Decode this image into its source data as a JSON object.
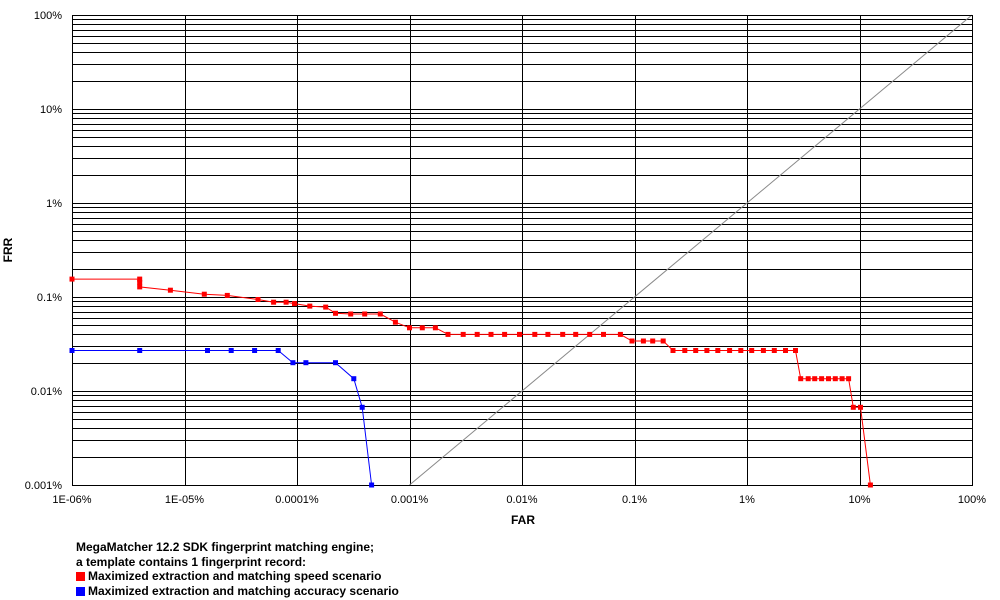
{
  "chart_data": {
    "type": "line",
    "xlabel": "FAR",
    "ylabel": "FRR",
    "x_scale": "log",
    "y_scale": "log",
    "xlim": [
      "1E-06%",
      "100%"
    ],
    "ylim": [
      "0.001%",
      "100%"
    ],
    "x_ticks": [
      "1E-06%",
      "1E-05%",
      "0.0001%",
      "0.001%",
      "0.01%",
      "0.1%",
      "1%",
      "10%",
      "100%"
    ],
    "y_ticks": [
      "0.001%",
      "0.01%",
      "0.1%",
      "1%",
      "10%",
      "100%"
    ],
    "x_tick_values": [
      1e-06,
      1e-05,
      0.0001,
      0.001,
      0.01,
      0.1,
      1,
      10,
      100
    ],
    "y_tick_values": [
      0.001,
      0.01,
      0.1,
      1,
      10,
      100
    ],
    "grid": true,
    "diagonal_eer_line": true,
    "caption": {
      "line1": "MegaMatcher 12.2 SDK fingerprint matching engine;",
      "line2": "a template contains 1 fingerprint record:"
    },
    "series": [
      {
        "name": "Maximized extraction and matching speed scenario",
        "color": "#ff0000",
        "points": [
          [
            1e-06,
            0.155
          ],
          [
            4e-06,
            0.155
          ],
          [
            4e-06,
            0.143
          ],
          [
            4e-06,
            0.128
          ],
          [
            7.5e-06,
            0.118
          ],
          [
            1.5e-05,
            0.107
          ],
          [
            2.4e-05,
            0.104
          ],
          [
            4.5e-05,
            0.094
          ],
          [
            6.2e-05,
            0.088
          ],
          [
            8e-05,
            0.088
          ],
          [
            9.5e-05,
            0.085
          ],
          [
            0.00013,
            0.08
          ],
          [
            0.00018,
            0.078
          ],
          [
            0.00022,
            0.067
          ],
          [
            0.0003,
            0.066
          ],
          [
            0.0004,
            0.066
          ],
          [
            0.00055,
            0.066
          ],
          [
            0.00075,
            0.054
          ],
          [
            0.001,
            0.047
          ],
          [
            0.0013,
            0.047
          ],
          [
            0.0017,
            0.047
          ],
          [
            0.0022,
            0.04
          ],
          [
            0.003,
            0.04
          ],
          [
            0.004,
            0.04
          ],
          [
            0.0053,
            0.04
          ],
          [
            0.007,
            0.04
          ],
          [
            0.0095,
            0.04
          ],
          [
            0.013,
            0.04
          ],
          [
            0.017,
            0.04
          ],
          [
            0.023,
            0.04
          ],
          [
            0.03,
            0.04
          ],
          [
            0.04,
            0.04
          ],
          [
            0.053,
            0.04
          ],
          [
            0.075,
            0.04
          ],
          [
            0.095,
            0.034
          ],
          [
            0.12,
            0.034
          ],
          [
            0.145,
            0.034
          ],
          [
            0.18,
            0.034
          ],
          [
            0.22,
            0.027
          ],
          [
            0.28,
            0.027
          ],
          [
            0.35,
            0.027
          ],
          [
            0.44,
            0.027
          ],
          [
            0.55,
            0.027
          ],
          [
            0.7,
            0.027
          ],
          [
            0.88,
            0.027
          ],
          [
            1.1,
            0.027
          ],
          [
            1.4,
            0.027
          ],
          [
            1.75,
            0.027
          ],
          [
            2.2,
            0.027
          ],
          [
            2.7,
            0.027
          ],
          [
            3,
            0.0135
          ],
          [
            3.5,
            0.0135
          ],
          [
            4,
            0.0135
          ],
          [
            4.6,
            0.0135
          ],
          [
            5.3,
            0.0135
          ],
          [
            6.1,
            0.0135
          ],
          [
            7,
            0.0135
          ],
          [
            8,
            0.0135
          ],
          [
            8.8,
            0.0067
          ],
          [
            10.2,
            0.0067
          ],
          [
            12.5,
            0.001
          ]
        ]
      },
      {
        "name": "Maximized extraction and matching accuracy scenario",
        "color": "#0000ff",
        "points": [
          [
            1e-06,
            0.027
          ],
          [
            4e-06,
            0.027
          ],
          [
            1.6e-05,
            0.027
          ],
          [
            2.6e-05,
            0.027
          ],
          [
            4.2e-05,
            0.027
          ],
          [
            6.8e-05,
            0.027
          ],
          [
            9.2e-05,
            0.02
          ],
          [
            0.00012,
            0.02
          ],
          [
            0.00022,
            0.02
          ],
          [
            0.00032,
            0.0135
          ],
          [
            0.00038,
            0.0067
          ],
          [
            0.00046,
            0.001
          ]
        ]
      }
    ]
  }
}
